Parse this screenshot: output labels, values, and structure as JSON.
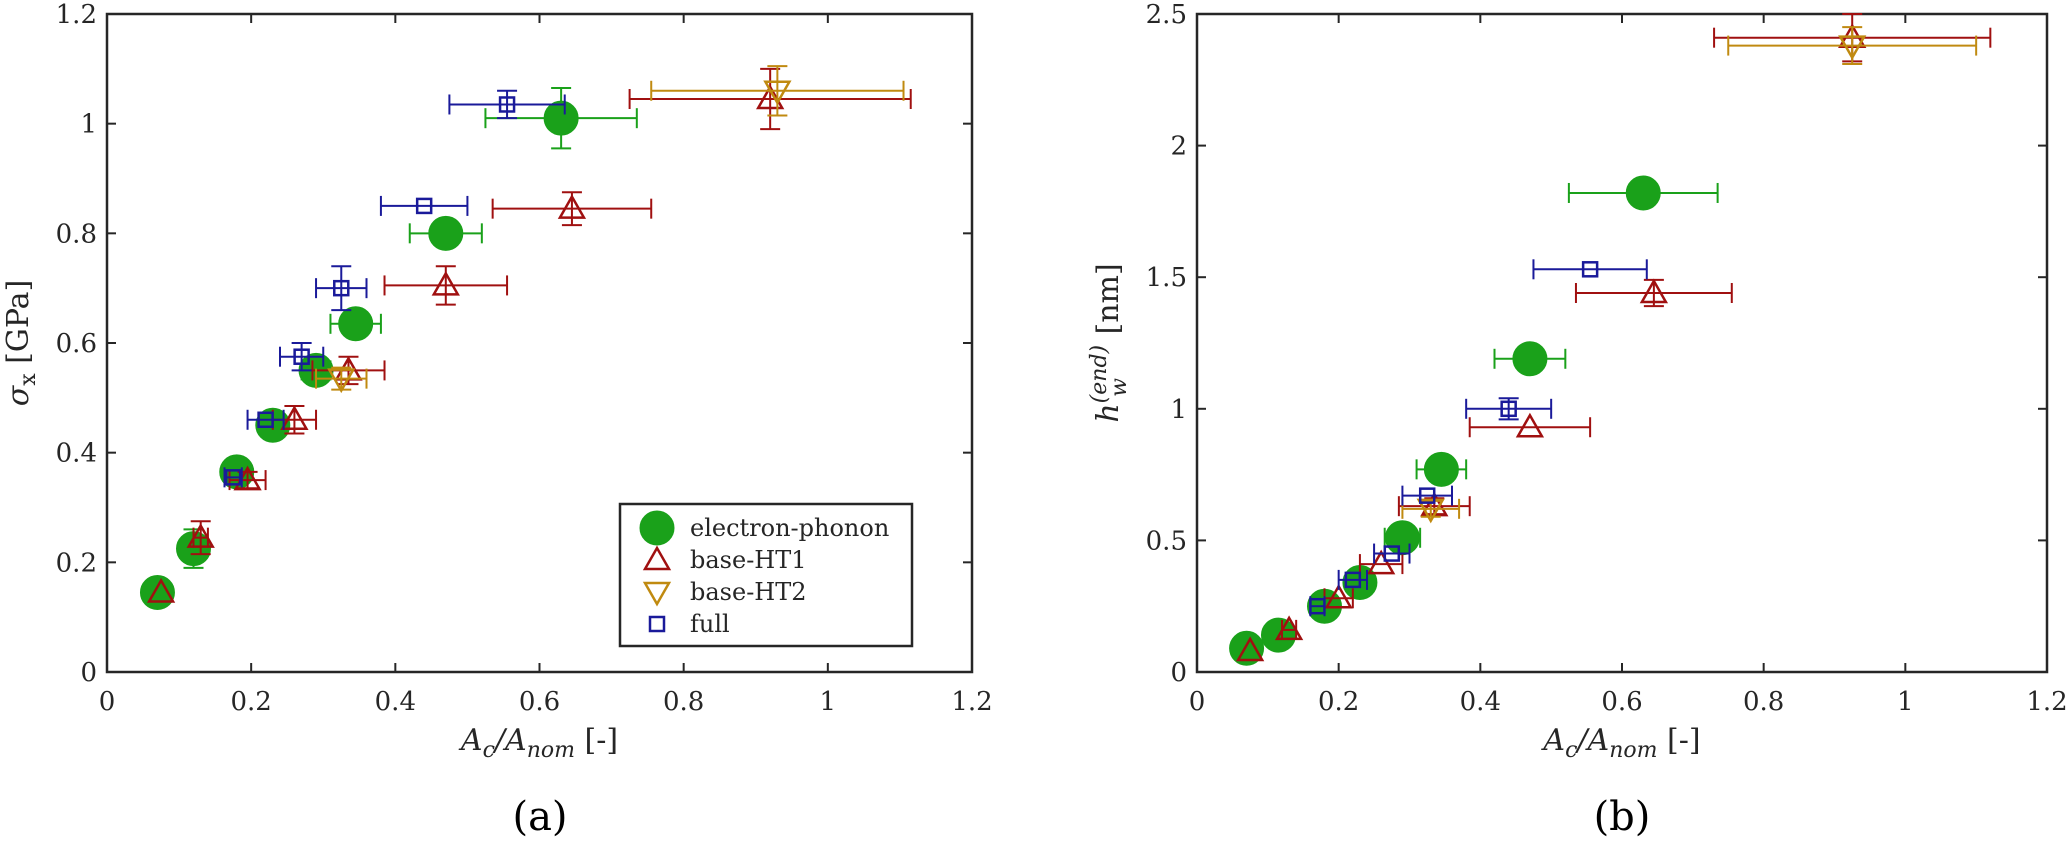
{
  "chart_data": [
    {
      "type": "scatter",
      "panel_label": "(a)",
      "xlabel": {
        "main": "A",
        "sub1": "c",
        "sep": "/A",
        "sub2": "nom",
        "unit": " [-]"
      },
      "ylabel": {
        "main": "σ",
        "sub": "x",
        "unit": " [GPa]"
      },
      "xlim": [
        0,
        1.2
      ],
      "ylim": [
        0,
        1.2
      ],
      "xticks": [
        0,
        0.2,
        0.4,
        0.6,
        0.8,
        1,
        1.2
      ],
      "xtick_labels": [
        "0",
        "0.2",
        "0.4",
        "0.6",
        "0.8",
        "1",
        "1.2"
      ],
      "yticks": [
        0,
        0.2,
        0.4,
        0.6,
        0.8,
        1,
        1.2
      ],
      "ytick_labels": [
        "0",
        "0.2",
        "0.4",
        "0.6",
        "0.8",
        "1",
        "1.2"
      ],
      "grid": false,
      "legend": {
        "placement": "bottom-right",
        "entries": [
          "electron-phonon",
          "base-HT1",
          "base-HT2",
          "full"
        ]
      },
      "series": [
        {
          "name": "electron-phonon",
          "marker": "circle",
          "color": "#1aa11a",
          "x": [
            0.07,
            0.12,
            0.18,
            0.23,
            0.29,
            0.345,
            0.47,
            0.63
          ],
          "y": [
            0.145,
            0.225,
            0.365,
            0.45,
            0.55,
            0.635,
            0.8,
            1.01
          ],
          "xerr": [
            0,
            0.01,
            0.01,
            0.015,
            0.02,
            0.035,
            0.05,
            0.105
          ],
          "yerr": [
            0,
            0.035,
            0,
            0,
            0,
            0.015,
            0,
            0.055
          ]
        },
        {
          "name": "base-HT1",
          "marker": "triangle-up",
          "color": "#a01010",
          "x": [
            0.075,
            0.13,
            0.195,
            0.26,
            0.335,
            0.47,
            0.645,
            0.92
          ],
          "y": [
            0.145,
            0.245,
            0.35,
            0.46,
            0.55,
            0.705,
            0.845,
            1.045
          ],
          "xerr": [
            0,
            0.01,
            0.025,
            0.03,
            0.05,
            0.085,
            0.11,
            0.195
          ],
          "yerr": [
            0,
            0.03,
            0.015,
            0.025,
            0.025,
            0.035,
            0.03,
            0.055
          ]
        },
        {
          "name": "base-HT2",
          "marker": "triangle-down",
          "color": "#c08a10",
          "x": [
            0.325,
            0.93
          ],
          "y": [
            0.535,
            1.06
          ],
          "xerr": [
            0.035,
            0.175
          ],
          "yerr": [
            0.02,
            0.045
          ]
        },
        {
          "name": "full",
          "marker": "square",
          "color": "#1a1a9a",
          "x": [
            0.175,
            0.22,
            0.27,
            0.325,
            0.44,
            0.555
          ],
          "y": [
            0.355,
            0.46,
            0.575,
            0.7,
            0.85,
            1.035
          ],
          "xerr": [
            0.012,
            0.025,
            0.03,
            0.035,
            0.06,
            0.08
          ],
          "yerr": [
            0,
            0,
            0.025,
            0.04,
            0,
            0.025
          ]
        }
      ]
    },
    {
      "type": "scatter",
      "panel_label": "(b)",
      "xlabel": {
        "main": "A",
        "sub1": "c",
        "sep": "/A",
        "sub2": "nom",
        "unit": " [-]"
      },
      "ylabel": {
        "main": "h",
        "sub": "w",
        "sup": "(end)",
        "unit": " [nm]"
      },
      "xlim": [
        0,
        1.2
      ],
      "ylim": [
        0,
        2.5
      ],
      "xticks": [
        0,
        0.2,
        0.4,
        0.6,
        0.8,
        1,
        1.2
      ],
      "xtick_labels": [
        "0",
        "0.2",
        "0.4",
        "0.6",
        "0.8",
        "1",
        "1.2"
      ],
      "yticks": [
        0,
        0.5,
        1,
        1.5,
        2,
        2.5
      ],
      "ytick_labels": [
        "0",
        "0.5",
        "1",
        "1.5",
        "2",
        "2.5"
      ],
      "grid": false,
      "series": [
        {
          "name": "electron-phonon",
          "marker": "circle",
          "color": "#1aa11a",
          "x": [
            0.07,
            0.115,
            0.18,
            0.23,
            0.29,
            0.345,
            0.47,
            0.63
          ],
          "y": [
            0.09,
            0.14,
            0.25,
            0.34,
            0.51,
            0.77,
            1.19,
            1.82
          ],
          "xerr": [
            0,
            0,
            0,
            0.015,
            0.025,
            0.035,
            0.05,
            0.105
          ],
          "yerr": [
            0,
            0,
            0,
            0,
            0,
            0,
            0,
            0
          ]
        },
        {
          "name": "base-HT1",
          "marker": "triangle-up",
          "color": "#a01010",
          "x": [
            0.075,
            0.13,
            0.2,
            0.26,
            0.335,
            0.47,
            0.645,
            0.925
          ],
          "y": [
            0.08,
            0.16,
            0.28,
            0.41,
            0.63,
            0.93,
            1.44,
            2.41
          ],
          "xerr": [
            0,
            0.01,
            0.02,
            0.03,
            0.05,
            0.085,
            0.11,
            0.195
          ],
          "yerr": [
            0,
            0,
            0,
            0,
            0.03,
            0,
            0.05,
            0.09
          ]
        },
        {
          "name": "base-HT2",
          "marker": "triangle-down",
          "color": "#c08a10",
          "x": [
            0.33,
            0.925
          ],
          "y": [
            0.62,
            2.38
          ],
          "xerr": [
            0.04,
            0.175
          ],
          "yerr": [
            0.03,
            0.07
          ]
        },
        {
          "name": "full",
          "marker": "square",
          "color": "#1a1a9a",
          "x": [
            0.17,
            0.22,
            0.275,
            0.325,
            0.44,
            0.555
          ],
          "y": [
            0.25,
            0.35,
            0.45,
            0.67,
            1.0,
            1.53
          ],
          "xerr": [
            0.01,
            0.02,
            0.025,
            0.035,
            0.06,
            0.08
          ],
          "yerr": [
            0,
            0,
            0,
            0,
            0.04,
            0
          ]
        }
      ]
    }
  ]
}
